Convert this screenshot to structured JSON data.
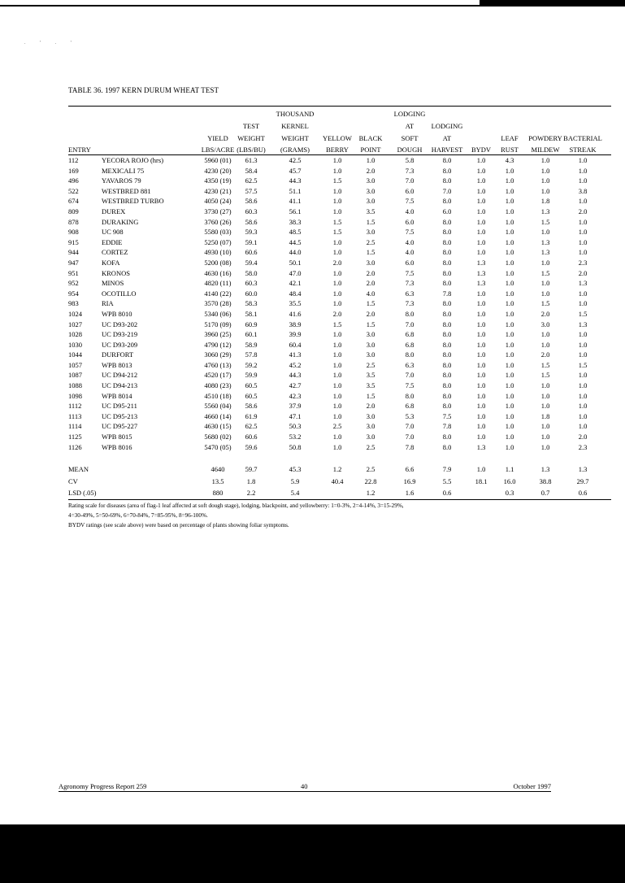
{
  "specks": ". ' . '",
  "title": "TABLE 36.  1997 KERN DURUM WHEAT TEST",
  "entry_header": "ENTRY",
  "headers": [
    {
      "key": "yield",
      "lines": [
        "",
        "",
        "YIELD",
        "LBS/ACRE"
      ]
    },
    {
      "key": "test_weight",
      "lines": [
        "",
        "TEST",
        "WEIGHT",
        "(LBS/BU)"
      ]
    },
    {
      "key": "kernel_weight",
      "lines": [
        "THOUSAND",
        "KERNEL",
        "WEIGHT",
        "(GRAMS)"
      ]
    },
    {
      "key": "yellow_berry",
      "lines": [
        "",
        "",
        "YELLOW",
        "BERRY"
      ]
    },
    {
      "key": "black_point",
      "lines": [
        "",
        "",
        "BLACK",
        "POINT"
      ]
    },
    {
      "key": "lodging_soft_dough",
      "lines": [
        "LODGING",
        "AT",
        "SOFT",
        "DOUGH"
      ]
    },
    {
      "key": "lodging_harvest",
      "lines": [
        "",
        "LODGING",
        "AT",
        "HARVEST"
      ]
    },
    {
      "key": "bydv",
      "lines": [
        "",
        "",
        "",
        "BYDV"
      ]
    },
    {
      "key": "leaf_rust",
      "lines": [
        "",
        "",
        "LEAF",
        "RUST"
      ]
    },
    {
      "key": "powdery_mildew",
      "lines": [
        "",
        "",
        "POWDERY",
        "MILDEW"
      ]
    },
    {
      "key": "bacterial_streak",
      "lines": [
        "",
        "",
        "BACTERIAL",
        "STREAK"
      ]
    }
  ],
  "rows": [
    {
      "entry": "112",
      "name": "YECORA ROJO  (hrs)",
      "v": [
        "5960 (01)",
        "61.3",
        "42.5",
        "1.0",
        "1.0",
        "5.8",
        "8.0",
        "1.0",
        "4.3",
        "1.0",
        "1.0"
      ]
    },
    {
      "entry": "169",
      "name": "MEXICALI 75",
      "v": [
        "4230 (20)",
        "58.4",
        "45.7",
        "1.0",
        "2.0",
        "7.3",
        "8.0",
        "1.0",
        "1.0",
        "1.0",
        "1.0"
      ]
    },
    {
      "entry": "496",
      "name": "YAVAROS 79",
      "v": [
        "4350 (19)",
        "62.5",
        "44.3",
        "1.5",
        "3.0",
        "7.0",
        "8.0",
        "1.0",
        "1.0",
        "1.0",
        "1.0"
      ]
    },
    {
      "entry": "522",
      "name": "WESTBRED 881",
      "v": [
        "4230 (21)",
        "57.5",
        "51.1",
        "1.0",
        "3.0",
        "6.0",
        "7.0",
        "1.0",
        "1.0",
        "1.0",
        "3.8"
      ]
    },
    {
      "entry": "674",
      "name": "WESTBRED TURBO",
      "v": [
        "4050 (24)",
        "58.6",
        "41.1",
        "1.0",
        "3.0",
        "7.5",
        "8.0",
        "1.0",
        "1.0",
        "1.8",
        "1.0"
      ]
    },
    {
      "entry": "809",
      "name": "DUREX",
      "v": [
        "3730 (27)",
        "60.3",
        "56.1",
        "1.0",
        "3.5",
        "4.0",
        "6.0",
        "1.0",
        "1.0",
        "1.3",
        "2.0"
      ]
    },
    {
      "entry": "878",
      "name": "DURAKING",
      "v": [
        "3760 (26)",
        "58.6",
        "38.3",
        "1.5",
        "1.5",
        "6.0",
        "8.0",
        "1.0",
        "1.0",
        "1.5",
        "1.0"
      ]
    },
    {
      "entry": "908",
      "name": "UC 908",
      "v": [
        "5580 (03)",
        "59.3",
        "48.5",
        "1.5",
        "3.0",
        "7.5",
        "8.0",
        "1.0",
        "1.0",
        "1.0",
        "1.0"
      ]
    },
    {
      "entry": "915",
      "name": "EDDIE",
      "v": [
        "5250 (07)",
        "59.1",
        "44.5",
        "1.0",
        "2.5",
        "4.0",
        "8.0",
        "1.0",
        "1.0",
        "1.3",
        "1.0"
      ]
    },
    {
      "entry": "944",
      "name": "CORTEZ",
      "v": [
        "4930 (10)",
        "60.6",
        "44.0",
        "1.0",
        "1.5",
        "4.0",
        "8.0",
        "1.0",
        "1.0",
        "1.3",
        "1.0"
      ]
    },
    {
      "entry": "947",
      "name": "KOFA",
      "v": [
        "5200 (08)",
        "59.4",
        "50.1",
        "2.0",
        "3.0",
        "6.0",
        "8.0",
        "1.3",
        "1.0",
        "1.0",
        "2.3"
      ]
    },
    {
      "entry": "951",
      "name": "KRONOS",
      "v": [
        "4630 (16)",
        "58.0",
        "47.0",
        "1.0",
        "2.0",
        "7.5",
        "8.0",
        "1.3",
        "1.0",
        "1.5",
        "2.0"
      ]
    },
    {
      "entry": "952",
      "name": "MINOS",
      "v": [
        "4820 (11)",
        "60.3",
        "42.1",
        "1.0",
        "2.0",
        "7.3",
        "8.0",
        "1.3",
        "1.0",
        "1.0",
        "1.3"
      ]
    },
    {
      "entry": "954",
      "name": "OCOTILLO",
      "v": [
        "4140 (22)",
        "60.0",
        "48.4",
        "1.0",
        "4.0",
        "6.3",
        "7.8",
        "1.0",
        "1.0",
        "1.0",
        "1.0"
      ]
    },
    {
      "entry": "983",
      "name": "RIA",
      "v": [
        "3570 (28)",
        "58.3",
        "35.5",
        "1.0",
        "1.5",
        "7.3",
        "8.0",
        "1.0",
        "1.0",
        "1.5",
        "1.0"
      ]
    },
    {
      "entry": "1024",
      "name": "WPB 8010",
      "v": [
        "5340 (06)",
        "58.1",
        "41.6",
        "2.0",
        "2.0",
        "8.0",
        "8.0",
        "1.0",
        "1.0",
        "2.0",
        "1.5"
      ]
    },
    {
      "entry": "1027",
      "name": "UC D93-202",
      "v": [
        "5170 (09)",
        "60.9",
        "38.9",
        "1.5",
        "1.5",
        "7.0",
        "8.0",
        "1.0",
        "1.0",
        "3.0",
        "1.3"
      ]
    },
    {
      "entry": "1028",
      "name": "UC D93-219",
      "v": [
        "3960 (25)",
        "60.1",
        "39.9",
        "1.0",
        "3.0",
        "6.8",
        "8.0",
        "1.0",
        "1.0",
        "1.0",
        "1.0"
      ]
    },
    {
      "entry": "1030",
      "name": "UC D93-209",
      "v": [
        "4790 (12)",
        "58.9",
        "60.4",
        "1.0",
        "3.0",
        "6.8",
        "8.0",
        "1.0",
        "1.0",
        "1.0",
        "1.0"
      ]
    },
    {
      "entry": "1044",
      "name": "DURFORT",
      "v": [
        "3060 (29)",
        "57.8",
        "41.3",
        "1.0",
        "3.0",
        "8.0",
        "8.0",
        "1.0",
        "1.0",
        "2.0",
        "1.0"
      ]
    },
    {
      "entry": "1057",
      "name": "WPB 8013",
      "v": [
        "4760 (13)",
        "59.2",
        "45.2",
        "1.0",
        "2.5",
        "6.3",
        "8.0",
        "1.0",
        "1.0",
        "1.5",
        "1.5"
      ]
    },
    {
      "entry": "1087",
      "name": "UC D94-212",
      "v": [
        "4520 (17)",
        "59.9",
        "44.3",
        "1.0",
        "3.5",
        "7.0",
        "8.0",
        "1.0",
        "1.0",
        "1.5",
        "1.0"
      ]
    },
    {
      "entry": "1088",
      "name": "UC D94-213",
      "v": [
        "4080 (23)",
        "60.5",
        "42.7",
        "1.0",
        "3.5",
        "7.5",
        "8.0",
        "1.0",
        "1.0",
        "1.0",
        "1.0"
      ]
    },
    {
      "entry": "1098",
      "name": "WPB 8014",
      "v": [
        "4510 (18)",
        "60.5",
        "42.3",
        "1.0",
        "1.5",
        "8.0",
        "8.0",
        "1.0",
        "1.0",
        "1.0",
        "1.0"
      ]
    },
    {
      "entry": "1112",
      "name": "UC D95-211",
      "v": [
        "5560 (04)",
        "58.6",
        "37.9",
        "1.0",
        "2.0",
        "6.8",
        "8.0",
        "1.0",
        "1.0",
        "1.0",
        "1.0"
      ]
    },
    {
      "entry": "1113",
      "name": "UC D95-213",
      "v": [
        "4660 (14)",
        "61.9",
        "47.1",
        "1.0",
        "3.0",
        "5.3",
        "7.5",
        "1.0",
        "1.0",
        "1.8",
        "1.0"
      ]
    },
    {
      "entry": "1114",
      "name": "UC D95-227",
      "v": [
        "4630 (15)",
        "62.5",
        "50.3",
        "2.5",
        "3.0",
        "7.0",
        "7.8",
        "1.0",
        "1.0",
        "1.0",
        "1.0"
      ]
    },
    {
      "entry": "1125",
      "name": "WPB 8015",
      "v": [
        "5680 (02)",
        "60.6",
        "53.2",
        "1.0",
        "3.0",
        "7.0",
        "8.0",
        "1.0",
        "1.0",
        "1.0",
        "2.0"
      ]
    },
    {
      "entry": "1126",
      "name": "WPB 8016",
      "v": [
        "5470 (05)",
        "59.6",
        "50.8",
        "1.0",
        "2.5",
        "7.8",
        "8.0",
        "1.3",
        "1.0",
        "1.0",
        "2.3"
      ]
    }
  ],
  "summary": [
    {
      "label": "MEAN",
      "v": [
        "4640",
        "59.7",
        "45.3",
        "1.2",
        "2.5",
        "6.6",
        "7.9",
        "1.0",
        "1.1",
        "1.3",
        "1.3"
      ]
    },
    {
      "label": "CV",
      "v": [
        "13.5",
        "1.8",
        "5.9",
        "40.4",
        "22.8",
        "16.9",
        "5.5",
        "18.1",
        "16.0",
        "38.8",
        "29.7"
      ]
    },
    {
      "label": "LSD (.05)",
      "v": [
        "880",
        "2.2",
        "5.4",
        "",
        "1.2",
        "1.6",
        "0.6",
        "",
        "0.3",
        "0.7",
        "0.6"
      ]
    }
  ],
  "notes": [
    "Rating scale for diseases (area of flag-1 leaf affected at soft dough stage), lodging, blackpoint, and yellowberry: 1=0-3%, 2=4-14%, 3=15-29%,",
    "4=30-49%, 5=50-69%, 6=70-84%, 7=85-95%, 8=96-100%.",
    "BYDV ratings (see scale above) were based on percentage of plants showing foliar symptoms."
  ],
  "footer": {
    "left": "Agronomy Progress Report 259",
    "center": "40",
    "right": "October 1997"
  }
}
